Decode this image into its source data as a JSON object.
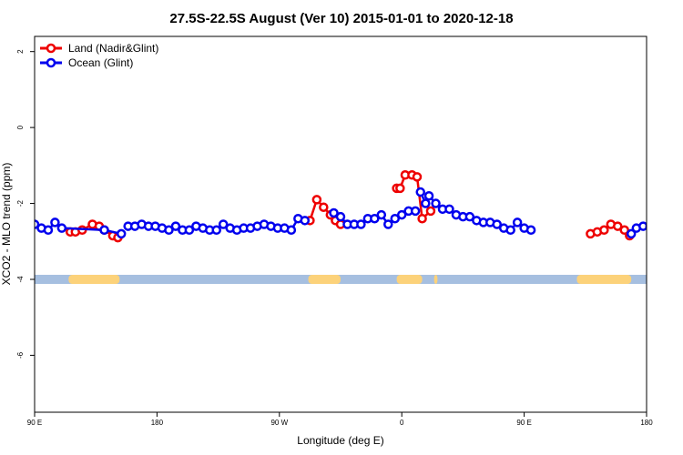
{
  "chart_data": {
    "type": "line",
    "title": "27.5S-22.5S August (Ver 10)   2015-01-01 to 2020-12-18",
    "xlabel": "Longitude (deg E)",
    "ylabel": "XCO2 - MLO trend (ppm)",
    "xlim": [
      90,
      450
    ],
    "ylim": [
      -7.5,
      2.4
    ],
    "x_ticks": [
      {
        "value": 90,
        "label": "90 E"
      },
      {
        "value": 162,
        "label": "180"
      },
      {
        "value": 234,
        "label": "90 W"
      },
      {
        "value": 306,
        "label": "0"
      },
      {
        "value": 378,
        "label": "90 E"
      },
      {
        "value": 450,
        "label": "180"
      }
    ],
    "y_ticks": [
      {
        "value": 2,
        "label": "2"
      },
      {
        "value": 0,
        "label": "0"
      },
      {
        "value": -2,
        "label": "-2"
      },
      {
        "value": -4,
        "label": "-4"
      },
      {
        "value": -6,
        "label": "-6"
      }
    ],
    "legend": {
      "position": "top-left"
    },
    "series": [
      {
        "name": "Land (Nadir&Glint)",
        "color": "#ee0000",
        "segments": [
          [
            [
              111,
              -2.75
            ],
            [
              114,
              -2.75
            ],
            [
              118,
              -2.7
            ],
            [
              124,
              -2.55
            ],
            [
              128,
              -2.6
            ],
            [
              131,
              -2.7
            ],
            [
              136,
              -2.85
            ],
            [
              139,
              -2.9
            ]
          ],
          [
            [
              252,
              -2.45
            ],
            [
              256,
              -1.9
            ],
            [
              260,
              -2.1
            ],
            [
              264,
              -2.3
            ],
            [
              267,
              -2.45
            ],
            [
              270,
              -2.55
            ]
          ],
          [
            [
              303,
              -1.6
            ],
            [
              305,
              -1.6
            ],
            [
              308,
              -1.25
            ],
            [
              312,
              -1.25
            ],
            [
              315,
              -1.3
            ],
            [
              318,
              -2.4
            ],
            [
              323,
              -2.2
            ]
          ],
          [
            [
              417,
              -2.8
            ],
            [
              421,
              -2.75
            ],
            [
              425,
              -2.7
            ],
            [
              429,
              -2.55
            ],
            [
              433,
              -2.6
            ],
            [
              437,
              -2.7
            ],
            [
              440,
              -2.85
            ]
          ]
        ]
      },
      {
        "name": "Ocean (Glint)",
        "color": "#0000ee",
        "segments": [
          [
            [
              90,
              -2.55
            ],
            [
              94,
              -2.65
            ],
            [
              98,
              -2.7
            ],
            [
              102,
              -2.5
            ],
            [
              106,
              -2.65
            ],
            [
              131,
              -2.7
            ],
            [
              141,
              -2.8
            ]
          ],
          [
            [
              145,
              -2.6
            ],
            [
              149,
              -2.6
            ],
            [
              153,
              -2.55
            ],
            [
              157,
              -2.6
            ],
            [
              161,
              -2.6
            ],
            [
              165,
              -2.65
            ],
            [
              169,
              -2.7
            ],
            [
              173,
              -2.6
            ],
            [
              177,
              -2.7
            ],
            [
              181,
              -2.7
            ],
            [
              185,
              -2.6
            ],
            [
              189,
              -2.65
            ],
            [
              193,
              -2.7
            ],
            [
              197,
              -2.7
            ],
            [
              201,
              -2.55
            ],
            [
              205,
              -2.65
            ],
            [
              209,
              -2.7
            ],
            [
              213,
              -2.65
            ],
            [
              217,
              -2.65
            ],
            [
              221,
              -2.6
            ],
            [
              225,
              -2.55
            ],
            [
              229,
              -2.6
            ],
            [
              233,
              -2.65
            ],
            [
              237,
              -2.65
            ],
            [
              241,
              -2.7
            ],
            [
              245,
              -2.4
            ],
            [
              249,
              -2.45
            ]
          ],
          [
            [
              266,
              -2.25
            ],
            [
              270,
              -2.35
            ],
            [
              274,
              -2.55
            ],
            [
              278,
              -2.55
            ],
            [
              282,
              -2.55
            ],
            [
              286,
              -2.4
            ],
            [
              290,
              -2.4
            ],
            [
              294,
              -2.3
            ],
            [
              298,
              -2.55
            ],
            [
              302,
              -2.4
            ],
            [
              306,
              -2.3
            ],
            [
              310,
              -2.2
            ],
            [
              314,
              -2.2
            ]
          ],
          [
            [
              317,
              -1.7
            ],
            [
              320,
              -2.0
            ],
            [
              322,
              -1.8
            ],
            [
              326,
              -2.0
            ],
            [
              330,
              -2.15
            ],
            [
              334,
              -2.15
            ],
            [
              338,
              -2.3
            ],
            [
              342,
              -2.35
            ],
            [
              346,
              -2.35
            ],
            [
              350,
              -2.45
            ],
            [
              354,
              -2.5
            ],
            [
              358,
              -2.5
            ],
            [
              362,
              -2.55
            ],
            [
              366,
              -2.65
            ],
            [
              370,
              -2.7
            ],
            [
              374,
              -2.5
            ],
            [
              378,
              -2.65
            ],
            [
              382,
              -2.7
            ]
          ],
          [
            [
              441,
              -2.8
            ],
            [
              444,
              -2.65
            ],
            [
              448,
              -2.6
            ],
            [
              452,
              -2.6
            ],
            [
              456,
              -2.6
            ],
            [
              460,
              -2.55
            ]
          ]
        ]
      }
    ],
    "land_sea_bar": {
      "y": -4,
      "ocean_color": "#a6bfe0",
      "land_color": "#fcd27a",
      "land_ranges": [
        [
          110,
          140
        ],
        [
          251,
          270
        ],
        [
          303,
          318
        ],
        [
          325,
          327
        ],
        [
          409,
          441
        ]
      ]
    }
  }
}
